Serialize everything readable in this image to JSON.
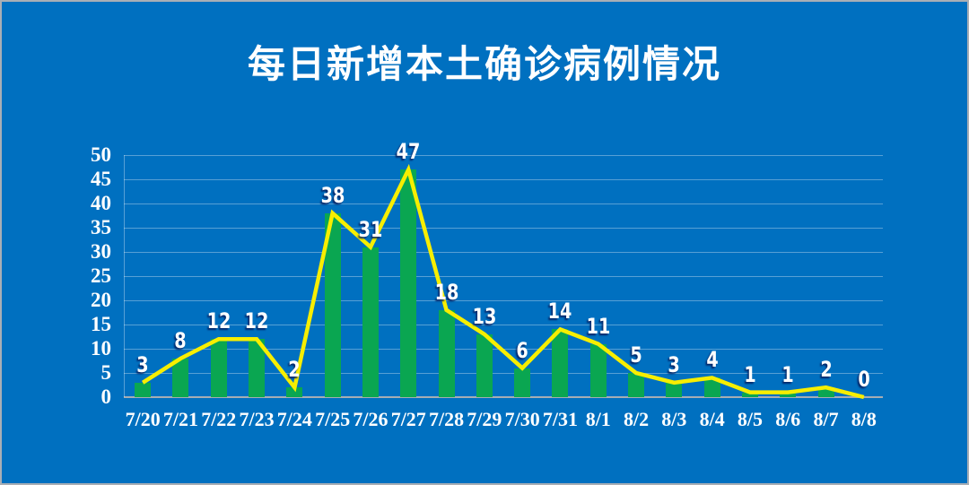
{
  "chart_data": {
    "type": "bar",
    "overlay": "line",
    "title": "每日新增本土确诊病例情况",
    "categories": [
      "7/20",
      "7/21",
      "7/22",
      "7/23",
      "7/24",
      "7/25",
      "7/26",
      "7/27",
      "7/28",
      "7/29",
      "7/30",
      "7/31",
      "8/1",
      "8/2",
      "8/3",
      "8/4",
      "8/5",
      "8/6",
      "8/7",
      "8/8"
    ],
    "values": [
      3,
      8,
      12,
      12,
      2,
      38,
      31,
      47,
      18,
      13,
      6,
      14,
      11,
      5,
      3,
      4,
      1,
      1,
      2,
      0
    ],
    "xlabel": "",
    "ylabel": "",
    "ylim": [
      0,
      50
    ],
    "ytick_step": 5,
    "grid": true,
    "legend": "none",
    "data_labels": true
  },
  "colors": {
    "background": "#0070C0",
    "bar": "#0AA651",
    "line": "#F7EE00",
    "gridline": "rgba(255,255,255,0.34)",
    "axis_line": "#A6ADB3",
    "text": "#FFFFFF",
    "label_shadow": "rgba(0,30,95,0.9)",
    "page_border": "#A9AFB5"
  }
}
